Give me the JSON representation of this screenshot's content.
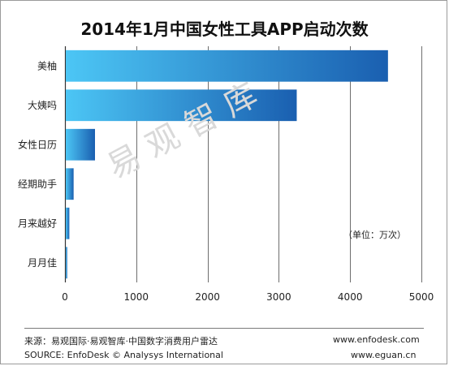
{
  "title": "2014年1月中国女性工具APP启动次数",
  "unit_label": "（单位：万次）",
  "watermark": "易观智库",
  "footer": {
    "source_cn": "来源：易观国际·易观智库·中国数字消费用户雷达",
    "source_en": "SOURCE: EnfoDesk © Analysys International",
    "url1": "www.enfodesk.com",
    "url2": "www.eguan.cn"
  },
  "colors": {
    "bar_start": "#4cc6f5",
    "bar_end": "#1a5fb0",
    "grid": "#4a4a4a"
  },
  "chart_data": {
    "type": "bar",
    "orientation": "horizontal",
    "categories": [
      "美柚",
      "大姨吗",
      "女性日历",
      "经期助手",
      "月来越好",
      "月月佳"
    ],
    "values": [
      4520,
      3240,
      410,
      110,
      50,
      20
    ],
    "xlim": [
      0,
      5000
    ],
    "x_ticks": [
      0,
      1000,
      2000,
      3000,
      4000,
      5000
    ],
    "grid": true
  }
}
